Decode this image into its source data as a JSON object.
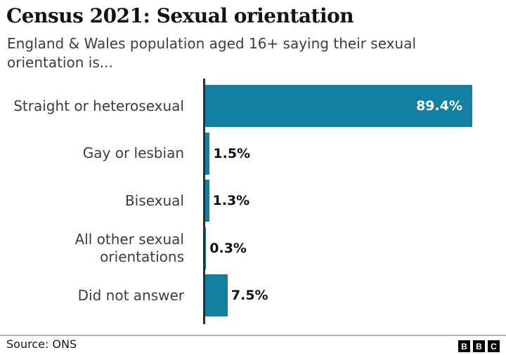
{
  "header": {
    "title": "Census 2021: Sexual orientation",
    "subtitle_lines": [
      "England & Wales population aged 16+ saying their sexual",
      "orientation is..."
    ]
  },
  "chart_data": {
    "type": "bar",
    "orientation": "horizontal",
    "title": "Census 2021: Sexual orientation",
    "subtitle": "England & Wales population aged 16+ saying their sexual orientation is...",
    "categories": [
      "Straight or heterosexual",
      "Gay or lesbian",
      "Bisexual",
      "All other sexual orientations",
      "Did not answer"
    ],
    "label_lines": [
      [
        "Straight or heterosexual"
      ],
      [
        "Gay or lesbian"
      ],
      [
        "Bisexual"
      ],
      [
        "All other sexual",
        "orientations"
      ],
      [
        "Did not answer"
      ]
    ],
    "values": [
      89.4,
      1.5,
      1.3,
      0.3,
      7.5
    ],
    "value_labels": [
      "89.4%",
      "1.5%",
      "1.3%",
      "0.3%",
      "7.5%"
    ],
    "unit": "%",
    "xlim": [
      0,
      100
    ],
    "grid": false,
    "legend": "none",
    "bar_color": "#1380A1"
  },
  "footer": {
    "source": "Source: ONS",
    "logo_letters": [
      "B",
      "B",
      "C"
    ]
  },
  "colors": {
    "bar": "#1380A1",
    "axis": "#2d2d2d",
    "title_text": "#141414",
    "body_text": "#3d3d3d",
    "value_text": "#111111",
    "value_text_inside": "#ffffff",
    "divider": "#b3b3b3",
    "background": "#ffffff"
  }
}
